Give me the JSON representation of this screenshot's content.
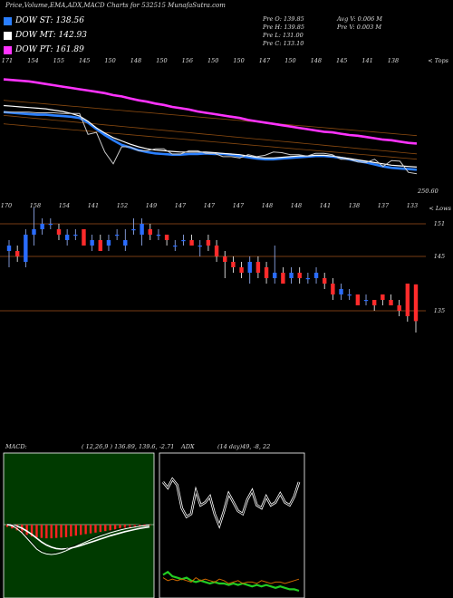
{
  "header": {
    "title": "Price,Volume,EMA,ADX,MACD Charts for 532515 MunafaSutra.com"
  },
  "legend": [
    {
      "label": "DOW ST: 138.56",
      "color": "#2a7fff"
    },
    {
      "label": "DOW MT: 142.93",
      "color": "#ffffff"
    },
    {
      "label": "DOW PT: 161.89",
      "color": "#ff33ff"
    }
  ],
  "stats": {
    "pre_o": "Pre   O: 139.85",
    "pre_h": "Pre   H: 139.85",
    "pre_l": "Pre   L: 131.00",
    "pre_c": "Pre   C: 133.10",
    "avg_v": "Avg V: 0.006   M",
    "pre_v": "Pre   V: 0.003 M"
  },
  "chart_data": [
    {
      "type": "line",
      "panel": "ema",
      "top_price_labels": [
        "171",
        "154",
        "155",
        "145",
        "150",
        "148",
        "150",
        "156",
        "150",
        "150",
        "147",
        "150",
        "148",
        "145",
        "141",
        "138"
      ],
      "corner_label": "< Tops",
      "last_value_label": "250.60",
      "series": [
        {
          "name": "DOW PT",
          "color": "#ff33ff",
          "values": [
            252,
            251.9,
            251.8,
            251.7,
            251.5,
            251.3,
            251.1,
            250.9,
            250.7,
            250.5,
            250.3,
            250.1,
            249.9,
            249.6,
            249.4,
            249.1,
            248.8,
            248.6,
            248.3,
            248.1,
            247.8,
            247.6,
            247.4,
            247.1,
            246.9,
            246.7,
            246.5,
            246.3,
            246.1,
            245.8,
            245.6,
            245.4,
            245.2,
            245.0,
            244.8,
            244.6,
            244.4,
            244.2,
            244.0,
            243.9,
            243.7,
            243.5,
            243.4,
            243.2,
            243.0,
            242.8,
            242.7,
            242.5,
            242.3,
            242.2
          ]
        },
        {
          "name": "DOW ST",
          "color": "#2a7fff",
          "values": [
            247,
            246.9,
            246.8,
            246.7,
            246.6,
            246.6,
            246.5,
            246.4,
            246.3,
            246.1,
            245.4,
            244.4,
            243.5,
            242.7,
            242,
            241.6,
            241.2,
            240.9,
            240.7,
            240.6,
            240.5,
            240.5,
            240.6,
            240.6,
            240.7,
            240.6,
            240.6,
            240.5,
            240.3,
            240.1,
            239.9,
            239.8,
            239.8,
            239.9,
            240,
            240.1,
            240.2,
            240.3,
            240.3,
            240.2,
            240,
            239.8,
            239.5,
            239.3,
            239,
            238.7,
            238.5,
            238.4,
            238.3,
            238.2
          ]
        },
        {
          "name": "DOW MT",
          "color": "#ffffff",
          "values": [
            248,
            247.9,
            247.8,
            247.7,
            247.6,
            247.5,
            247.3,
            247.1,
            246.8,
            246.4,
            245.6,
            244.6,
            243.8,
            243.1,
            242.6,
            242.1,
            241.7,
            241.4,
            241.2,
            241.1,
            241,
            240.9,
            240.9,
            240.9,
            240.9,
            240.8,
            240.7,
            240.6,
            240.5,
            240.3,
            240.1,
            240,
            240,
            240.1,
            240.2,
            240.3,
            240.3,
            240.4,
            240.4,
            240.3,
            240.1,
            239.9,
            239.7,
            239.5,
            239.3,
            239.1,
            238.9,
            238.8,
            238.7,
            238.6
          ]
        },
        {
          "name": "Close",
          "color": "#cccccc",
          "values": [
            247,
            247,
            247,
            247,
            246.9,
            246.9,
            246.9,
            246.8,
            246.8,
            246.8,
            243.6,
            243.9,
            240.9,
            239.1,
            241.7,
            241.7,
            241.1,
            241.1,
            241.4,
            241.4,
            240.6,
            240.6,
            241.1,
            241.1,
            240.7,
            240.7,
            240.2,
            240.2,
            240,
            240.5,
            240.2,
            240.4,
            240.9,
            240.8,
            240.5,
            240.5,
            240.3,
            240.7,
            240.7,
            240.5,
            239.8,
            239.8,
            239.4,
            239.3,
            239.8,
            238.7,
            239.6,
            239.5,
            237.8,
            237.6
          ]
        }
      ]
    },
    {
      "type": "candlestick",
      "panel": "price",
      "bottom_price_labels": [
        "170",
        "158",
        "154",
        "141",
        "152",
        "149",
        "147",
        "147",
        "147",
        "148",
        "148",
        "141",
        "138",
        "137",
        "133"
      ],
      "corner_label": "< Lows",
      "levels": [
        151,
        145,
        135
      ],
      "candles": [
        {
          "o": 146,
          "h": 148,
          "l": 143,
          "c": 147
        },
        {
          "o": 146,
          "h": 147,
          "l": 144,
          "c": 145
        },
        {
          "o": 144,
          "h": 150,
          "l": 143,
          "c": 149
        },
        {
          "o": 149,
          "h": 154,
          "l": 147,
          "c": 150
        },
        {
          "o": 150,
          "h": 152,
          "l": 149,
          "c": 151
        },
        {
          "o": 151,
          "h": 152,
          "l": 150,
          "c": 151
        },
        {
          "o": 150,
          "h": 151,
          "l": 148,
          "c": 149
        },
        {
          "o": 148,
          "h": 150,
          "l": 147,
          "c": 149
        },
        {
          "o": 149,
          "h": 150,
          "l": 148,
          "c": 149
        },
        {
          "o": 150,
          "h": 150,
          "l": 147,
          "c": 147
        },
        {
          "o": 147,
          "h": 149,
          "l": 146,
          "c": 148
        },
        {
          "o": 148,
          "h": 149,
          "l": 146,
          "c": 146
        },
        {
          "o": 147,
          "h": 149,
          "l": 146,
          "c": 148
        },
        {
          "o": 149,
          "h": 150,
          "l": 148,
          "c": 149
        },
        {
          "o": 147,
          "h": 150,
          "l": 146,
          "c": 148
        },
        {
          "o": 150,
          "h": 152,
          "l": 149,
          "c": 150
        },
        {
          "o": 149,
          "h": 152,
          "l": 147,
          "c": 151
        },
        {
          "o": 150,
          "h": 151,
          "l": 148,
          "c": 149
        },
        {
          "o": 149,
          "h": 150,
          "l": 148,
          "c": 149
        },
        {
          "o": 149,
          "h": 149,
          "l": 147,
          "c": 148
        },
        {
          "o": 147,
          "h": 148,
          "l": 146,
          "c": 147
        },
        {
          "o": 148,
          "h": 149,
          "l": 147,
          "c": 148
        },
        {
          "o": 148,
          "h": 149,
          "l": 147,
          "c": 147
        },
        {
          "o": 147,
          "h": 148,
          "l": 145,
          "c": 147
        },
        {
          "o": 148,
          "h": 149,
          "l": 146,
          "c": 147
        },
        {
          "o": 147,
          "h": 148,
          "l": 144,
          "c": 145
        },
        {
          "o": 145,
          "h": 146,
          "l": 141,
          "c": 144
        },
        {
          "o": 144,
          "h": 145,
          "l": 142,
          "c": 143
        },
        {
          "o": 143,
          "h": 144,
          "l": 141,
          "c": 142
        },
        {
          "o": 142,
          "h": 145,
          "l": 140,
          "c": 144
        },
        {
          "o": 144,
          "h": 145,
          "l": 141,
          "c": 142
        },
        {
          "o": 143,
          "h": 144,
          "l": 140,
          "c": 141
        },
        {
          "o": 141,
          "h": 147,
          "l": 140,
          "c": 142
        },
        {
          "o": 142,
          "h": 143,
          "l": 140,
          "c": 140
        },
        {
          "o": 141,
          "h": 143,
          "l": 140,
          "c": 142
        },
        {
          "o": 142,
          "h": 143,
          "l": 140,
          "c": 141
        },
        {
          "o": 141,
          "h": 142,
          "l": 140,
          "c": 141
        },
        {
          "o": 141,
          "h": 143,
          "l": 140,
          "c": 142
        },
        {
          "o": 141,
          "h": 142,
          "l": 139,
          "c": 140
        },
        {
          "o": 140,
          "h": 141,
          "l": 137,
          "c": 138
        },
        {
          "o": 138,
          "h": 140,
          "l": 137,
          "c": 139
        },
        {
          "o": 138,
          "h": 139,
          "l": 137,
          "c": 138
        },
        {
          "o": 138,
          "h": 138,
          "l": 136,
          "c": 136
        },
        {
          "o": 137,
          "h": 138,
          "l": 136,
          "c": 137
        },
        {
          "o": 137,
          "h": 137,
          "l": 135,
          "c": 136
        },
        {
          "o": 138,
          "h": 138,
          "l": 136,
          "c": 137
        },
        {
          "o": 137,
          "h": 138,
          "l": 136,
          "c": 136
        },
        {
          "o": 136,
          "h": 137,
          "l": 134,
          "c": 135
        },
        {
          "o": 140,
          "h": 140,
          "l": 133,
          "c": 134
        },
        {
          "o": 139.85,
          "h": 139.85,
          "l": 131,
          "c": 133.1
        }
      ]
    },
    {
      "type": "bar",
      "panel": "macd",
      "label": "MACD:",
      "values_text": "( 12,26,9 ) 136.89,  139.6,  -2.71",
      "histogram": [
        -0.6,
        -1.0,
        -1.5,
        -2.1,
        -2.7,
        -3.1,
        -3.4,
        -3.5,
        -3.6,
        -3.6,
        -3.5,
        -3.4,
        -3.3,
        -3.1,
        -2.9,
        -2.7,
        -2.5,
        -2.3,
        -2.1,
        -1.9,
        -1.7,
        -1.5,
        -1.3,
        -1.1,
        -0.9,
        -0.7,
        -0.5,
        -0.4,
        -0.3,
        -0.2
      ],
      "macd": [
        0,
        -0.5,
        -1.5,
        -3,
        -5,
        -7,
        -9,
        -10.2,
        -10.8,
        -11,
        -10.8,
        -10.3,
        -9.6,
        -8.8,
        -8,
        -7.2,
        -6.4,
        -5.6,
        -4.9,
        -4.2,
        -3.6,
        -3,
        -2.5,
        -2,
        -1.6,
        -1.2,
        -0.9,
        -0.6,
        -0.4,
        -0.2
      ],
      "signal": [
        0,
        -0.2,
        -0.6,
        -1.3,
        -2.4,
        -3.6,
        -5,
        -6.4,
        -7.5,
        -8.3,
        -8.8,
        -9,
        -8.9,
        -8.6,
        -8.2,
        -7.7,
        -7.1,
        -6.5,
        -5.9,
        -5.3,
        -4.7,
        -4.1,
        -3.6,
        -3.1,
        -2.6,
        -2.2,
        -1.8,
        -1.4,
        -1.1,
        -0.8
      ]
    },
    {
      "type": "line",
      "panel": "adx",
      "label": "ADX",
      "values_text": "(14 day)49, -8, 22",
      "series": [
        {
          "name": "ADX",
          "color": "#ffffff",
          "values": [
            80,
            76,
            82,
            78,
            62,
            56,
            58,
            74,
            64,
            66,
            70,
            58,
            50,
            60,
            72,
            66,
            60,
            58,
            68,
            74,
            64,
            62,
            70,
            64,
            66,
            72,
            66,
            64,
            70,
            80
          ]
        },
        {
          "name": "+DI",
          "color": "#22cc22",
          "values": [
            16,
            18,
            15,
            14,
            13,
            14,
            12,
            11,
            12,
            11,
            10,
            11,
            10,
            10,
            9,
            10,
            9,
            10,
            9,
            8,
            9,
            8,
            9,
            8,
            7,
            8,
            7,
            6,
            6,
            5
          ]
        },
        {
          "name": "-DI",
          "color": "#cc6600",
          "values": [
            14,
            12,
            13,
            12,
            13,
            12,
            11,
            14,
            12,
            13,
            12,
            11,
            13,
            12,
            10,
            11,
            12,
            10,
            11,
            11,
            10,
            12,
            11,
            10,
            11,
            11,
            10,
            11,
            12,
            13
          ]
        }
      ]
    }
  ]
}
